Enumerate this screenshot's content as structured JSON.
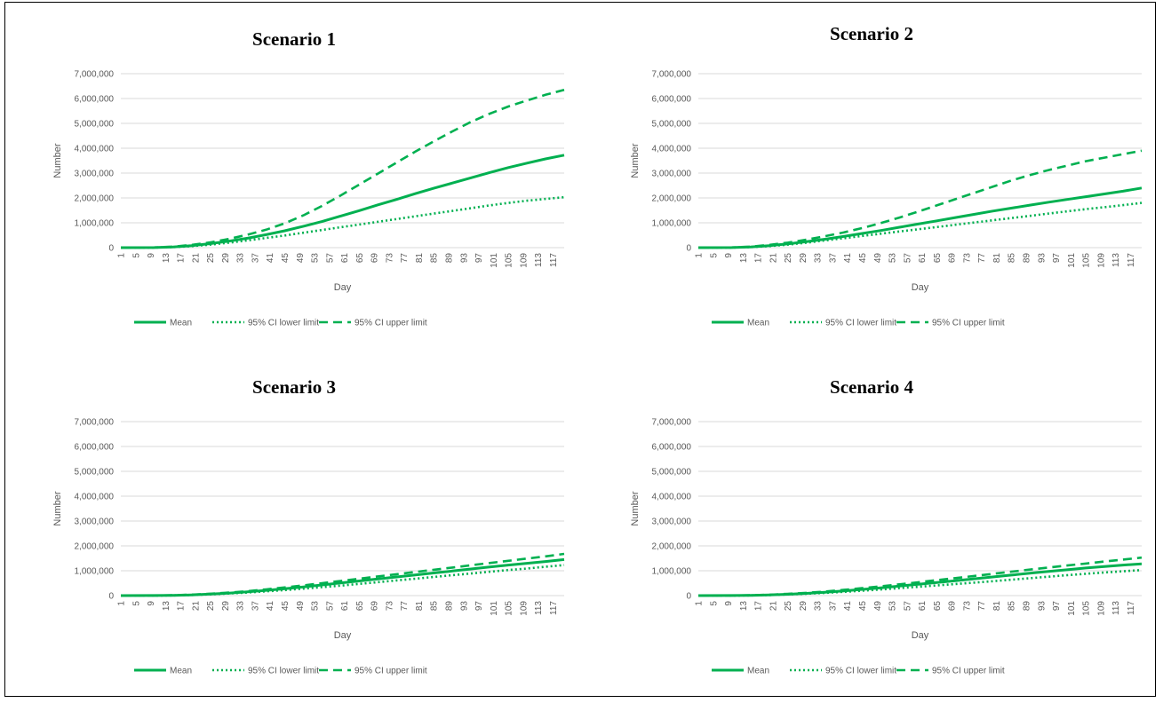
{
  "colors": {
    "series": "#00b050",
    "grid": "#d9d9d9",
    "text": "#595959"
  },
  "chart_data": [
    {
      "type": "line",
      "title": "Scenario 1",
      "xlabel": "Day",
      "ylabel": "Number",
      "ylim": [
        0,
        7000000
      ],
      "yticks": [
        0,
        1000000,
        2000000,
        3000000,
        4000000,
        5000000,
        6000000,
        7000000
      ],
      "ytick_labels": [
        "0",
        "1,000,000",
        "2,000,000",
        "3,000,000",
        "4,000,000",
        "5,000,000",
        "6,000,000",
        "7,000,000"
      ],
      "xtick_labels": [
        "1",
        "5",
        "9",
        "13",
        "17",
        "21",
        "25",
        "29",
        "33",
        "37",
        "41",
        "45",
        "49",
        "53",
        "57",
        "61",
        "65",
        "69",
        "73",
        "77",
        "81",
        "85",
        "89",
        "93",
        "97",
        "101",
        "105",
        "109",
        "113",
        "117"
      ],
      "x": [
        1,
        10,
        15,
        20,
        25,
        30,
        35,
        40,
        45,
        50,
        55,
        60,
        65,
        70,
        75,
        80,
        85,
        90,
        95,
        100,
        105,
        110,
        115,
        120
      ],
      "grid": true,
      "legend": "bottom",
      "series": [
        {
          "name": "Mean",
          "style": "solid",
          "values": [
            0,
            5000,
            30000,
            80000,
            160000,
            260000,
            380000,
            520000,
            680000,
            860000,
            1050000,
            1270000,
            1490000,
            1720000,
            1940000,
            2170000,
            2390000,
            2600000,
            2810000,
            3020000,
            3220000,
            3400000,
            3570000,
            3720000
          ]
        },
        {
          "name": "95% CI lower limit",
          "style": "dotted",
          "values": [
            0,
            3000,
            20000,
            60000,
            120000,
            200000,
            290000,
            390000,
            490000,
            600000,
            710000,
            820000,
            930000,
            1040000,
            1150000,
            1260000,
            1370000,
            1480000,
            1590000,
            1700000,
            1800000,
            1890000,
            1960000,
            2030000
          ]
        },
        {
          "name": "95% CI upper limit",
          "style": "dashed",
          "values": [
            0,
            8000,
            40000,
            110000,
            210000,
            350000,
            520000,
            720000,
            980000,
            1300000,
            1680000,
            2100000,
            2540000,
            2980000,
            3420000,
            3860000,
            4280000,
            4680000,
            5060000,
            5390000,
            5680000,
            5920000,
            6150000,
            6350000
          ]
        }
      ]
    },
    {
      "type": "line",
      "title": "Scenario 2",
      "xlabel": "Day",
      "ylabel": "Number",
      "ylim": [
        0,
        7000000
      ],
      "yticks": [
        0,
        1000000,
        2000000,
        3000000,
        4000000,
        5000000,
        6000000,
        7000000
      ],
      "ytick_labels": [
        "0",
        "1,000,000",
        "2,000,000",
        "3,000,000",
        "4,000,000",
        "5,000,000",
        "6,000,000",
        "7,000,000"
      ],
      "xtick_labels": [
        "1",
        "5",
        "9",
        "13",
        "17",
        "21",
        "25",
        "29",
        "33",
        "37",
        "41",
        "45",
        "49",
        "53",
        "57",
        "61",
        "65",
        "69",
        "73",
        "77",
        "81",
        "85",
        "89",
        "93",
        "97",
        "101",
        "105",
        "109",
        "113",
        "117"
      ],
      "x": [
        1,
        10,
        15,
        20,
        25,
        30,
        35,
        40,
        45,
        50,
        55,
        60,
        65,
        70,
        75,
        80,
        85,
        90,
        95,
        100,
        105,
        110,
        115,
        120
      ],
      "grid": true,
      "legend": "bottom",
      "series": [
        {
          "name": "Mean",
          "style": "solid",
          "values": [
            0,
            5000,
            30000,
            80000,
            150000,
            240000,
            340000,
            450000,
            570000,
            690000,
            820000,
            950000,
            1080000,
            1210000,
            1340000,
            1470000,
            1590000,
            1710000,
            1830000,
            1940000,
            2050000,
            2160000,
            2270000,
            2400000
          ]
        },
        {
          "name": "95% CI lower limit",
          "style": "dotted",
          "values": [
            0,
            3000,
            20000,
            60000,
            120000,
            200000,
            290000,
            380000,
            470000,
            560000,
            650000,
            740000,
            830000,
            920000,
            1010000,
            1100000,
            1190000,
            1280000,
            1370000,
            1460000,
            1550000,
            1630000,
            1710000,
            1800000
          ]
        },
        {
          "name": "95% CI upper limit",
          "style": "dashed",
          "values": [
            0,
            8000,
            40000,
            110000,
            200000,
            320000,
            460000,
            610000,
            790000,
            990000,
            1210000,
            1450000,
            1700000,
            1950000,
            2200000,
            2450000,
            2700000,
            2920000,
            3120000,
            3300000,
            3480000,
            3620000,
            3760000,
            3900000
          ]
        }
      ]
    },
    {
      "type": "line",
      "title": "Scenario 3",
      "xlabel": "Day",
      "ylabel": "Number",
      "ylim": [
        0,
        7000000
      ],
      "yticks": [
        0,
        1000000,
        2000000,
        3000000,
        4000000,
        5000000,
        6000000,
        7000000
      ],
      "ytick_labels": [
        "0",
        "1,000,000",
        "2,000,000",
        "3,000,000",
        "4,000,000",
        "5,000,000",
        "6,000,000",
        "7,000,000"
      ],
      "xtick_labels": [
        "1",
        "5",
        "9",
        "13",
        "17",
        "21",
        "25",
        "29",
        "33",
        "37",
        "41",
        "45",
        "49",
        "53",
        "57",
        "61",
        "65",
        "69",
        "73",
        "77",
        "81",
        "85",
        "89",
        "93",
        "97",
        "101",
        "105",
        "109",
        "113",
        "117"
      ],
      "x": [
        1,
        10,
        15,
        20,
        25,
        30,
        35,
        40,
        45,
        50,
        55,
        60,
        65,
        70,
        75,
        80,
        85,
        90,
        95,
        100,
        105,
        110,
        115,
        120
      ],
      "grid": true,
      "legend": "bottom",
      "series": [
        {
          "name": "Mean",
          "style": "solid",
          "values": [
            0,
            2000,
            10000,
            30000,
            60000,
            100000,
            150000,
            210000,
            280000,
            350000,
            430000,
            510000,
            590000,
            670000,
            750000,
            830000,
            910000,
            990000,
            1070000,
            1150000,
            1230000,
            1300000,
            1370000,
            1450000
          ]
        },
        {
          "name": "95% CI lower limit",
          "style": "dotted",
          "values": [
            0,
            1000,
            8000,
            25000,
            50000,
            85000,
            125000,
            170000,
            220000,
            280000,
            340000,
            400000,
            470000,
            540000,
            610000,
            680000,
            750000,
            820000,
            890000,
            960000,
            1030000,
            1090000,
            1160000,
            1230000
          ]
        },
        {
          "name": "95% CI upper limit",
          "style": "dashed",
          "values": [
            0,
            3000,
            15000,
            40000,
            75000,
            120000,
            180000,
            250000,
            330000,
            410000,
            500000,
            590000,
            680000,
            770000,
            860000,
            950000,
            1040000,
            1130000,
            1220000,
            1310000,
            1400000,
            1490000,
            1580000,
            1680000
          ]
        }
      ]
    },
    {
      "type": "line",
      "title": "Scenario 4",
      "xlabel": "Day",
      "ylabel": "Number",
      "ylim": [
        0,
        7000000
      ],
      "yticks": [
        0,
        1000000,
        2000000,
        3000000,
        4000000,
        5000000,
        6000000,
        7000000
      ],
      "ytick_labels": [
        "0",
        "1,000,000",
        "2,000,000",
        "3,000,000",
        "4,000,000",
        "5,000,000",
        "6,000,000",
        "7,000,000"
      ],
      "xtick_labels": [
        "1",
        "5",
        "9",
        "13",
        "17",
        "21",
        "25",
        "29",
        "33",
        "37",
        "41",
        "45",
        "49",
        "53",
        "57",
        "61",
        "65",
        "69",
        "73",
        "77",
        "81",
        "85",
        "89",
        "93",
        "97",
        "101",
        "105",
        "109",
        "113",
        "117"
      ],
      "x": [
        1,
        10,
        15,
        20,
        25,
        30,
        35,
        40,
        45,
        50,
        55,
        60,
        65,
        70,
        75,
        80,
        85,
        90,
        95,
        100,
        105,
        110,
        115,
        120
      ],
      "grid": true,
      "legend": "bottom",
      "series": [
        {
          "name": "Mean",
          "style": "solid",
          "values": [
            0,
            2000,
            10000,
            28000,
            55000,
            90000,
            135000,
            190000,
            250000,
            315000,
            385000,
            455000,
            525000,
            600000,
            675000,
            750000,
            825000,
            900000,
            970000,
            1040000,
            1110000,
            1170000,
            1230000,
            1280000
          ]
        },
        {
          "name": "95% CI lower limit",
          "style": "dotted",
          "values": [
            0,
            1000,
            7000,
            22000,
            45000,
            75000,
            110000,
            150000,
            195000,
            245000,
            300000,
            355000,
            410000,
            465000,
            520000,
            580000,
            640000,
            700000,
            760000,
            820000,
            880000,
            930000,
            980000,
            1030000
          ]
        },
        {
          "name": "95% CI upper limit",
          "style": "dashed",
          "values": [
            0,
            3000,
            14000,
            37000,
            70000,
            112000,
            165000,
            230000,
            300000,
            375000,
            455000,
            535000,
            620000,
            705000,
            790000,
            875000,
            960000,
            1045000,
            1130000,
            1210000,
            1290000,
            1370000,
            1450000,
            1530000
          ]
        }
      ]
    }
  ]
}
